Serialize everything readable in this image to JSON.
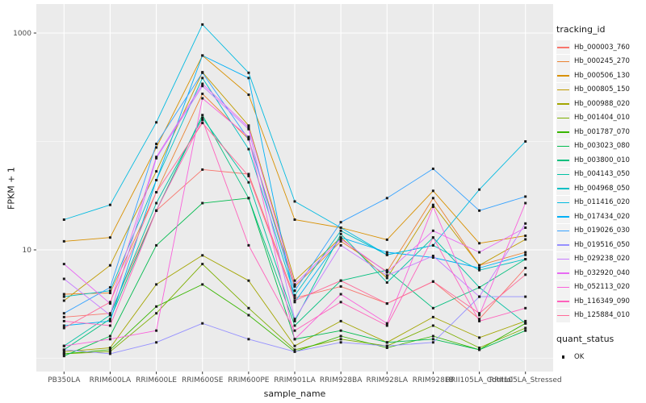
{
  "chart": {
    "xlabel": "sample_name",
    "ylabel": "FPKM + 1",
    "legend_title": "tracking_id",
    "legend2_title": "quant_status",
    "legend2_items": [
      {
        "label": "OK",
        "marker": "point-icon"
      }
    ]
  },
  "chart_data": {
    "type": "line",
    "x_axis_label": "sample_name",
    "y_axis_label": "FPKM + 1",
    "y_scale": "log10",
    "y_ticks": [
      10,
      1000
    ],
    "y_minor_gridlines": [
      1,
      100
    ],
    "ylim": [
      0.85,
      1500
    ],
    "grid": true,
    "legend_position": "right",
    "panel_bg": "#EBEBEB",
    "grid_color": "#FFFFFF",
    "point_color": "#1a1a1a",
    "tick_label_color": "#4D4D4D",
    "categories": [
      "PB350LA",
      "RRIM600LA",
      "RRIM600LE",
      "RRIM600SE",
      "RRIM600PE",
      "RRIM901LA",
      "RRIM928BA",
      "RRIM928LA",
      "RRIM928LB",
      "RRII105LA_Control",
      "RRII105LA_Stressed"
    ],
    "series": [
      {
        "name": "Hb_000003_760",
        "color": "#F8766D",
        "values": [
          2.4,
          2.6,
          23,
          55,
          50,
          3.6,
          4.6,
          3.2,
          5.1,
          2.3,
          6.8
        ]
      },
      {
        "name": "Hb_000245_270",
        "color": "#EA8331",
        "values": [
          3.9,
          4.0,
          34,
          275,
          105,
          4.6,
          12,
          6.3,
          30,
          7.2,
          9.5
        ]
      },
      {
        "name": "Hb_000506_130",
        "color": "#D89000",
        "values": [
          12,
          13,
          88,
          620,
          270,
          19,
          16,
          12.4,
          35,
          11.5,
          13.5
        ]
      },
      {
        "name": "Hb_000805_150",
        "color": "#C09B00",
        "values": [
          3.4,
          7.2,
          53,
          435,
          140,
          5.2,
          13,
          5.5,
          26,
          7.2,
          12.5
        ]
      },
      {
        "name": "Hb_000988_020",
        "color": "#A3A500",
        "values": [
          1.15,
          1.25,
          4.8,
          8.9,
          5.2,
          1.3,
          2.2,
          1.4,
          2.4,
          1.55,
          2.2
        ]
      },
      {
        "name": "Hb_001404_010",
        "color": "#7CAE00",
        "values": [
          1.1,
          1.15,
          2.6,
          7.4,
          2.9,
          1.2,
          1.5,
          1.3,
          2.0,
          1.25,
          1.9
        ]
      },
      {
        "name": "Hb_001787_070",
        "color": "#39B600",
        "values": [
          1.1,
          1.2,
          3.0,
          4.8,
          2.5,
          1.15,
          1.6,
          1.25,
          1.6,
          1.2,
          2.1
        ]
      },
      {
        "name": "Hb_003023_080",
        "color": "#00BB4E",
        "values": [
          1.05,
          1.6,
          11,
          27,
          30,
          1.5,
          1.8,
          1.4,
          1.5,
          1.2,
          1.8
        ]
      },
      {
        "name": "Hb_003800_010",
        "color": "#00BF7D",
        "values": [
          1.2,
          2.3,
          23,
          175,
          30,
          2.0,
          5.2,
          6.5,
          2.9,
          4.5,
          8.2
        ]
      },
      {
        "name": "Hb_004143_050",
        "color": "#00C1A3",
        "values": [
          1.3,
          2.5,
          27,
          165,
          42,
          2.2,
          14,
          5.0,
          13,
          4.5,
          2.1
        ]
      },
      {
        "name": "Hb_004968_050",
        "color": "#00BFC4",
        "values": [
          3.7,
          4.2,
          44,
          385,
          85,
          3.8,
          15,
          9.0,
          11,
          6.5,
          8.2
        ]
      },
      {
        "name": "Hb_011416_020",
        "color": "#00BAE0",
        "values": [
          19,
          26,
          150,
          1200,
          430,
          28,
          16,
          9.0,
          11,
          36,
          100
        ]
      },
      {
        "name": "Hb_017434_020",
        "color": "#00B0F6",
        "values": [
          2.0,
          2.2,
          44,
          620,
          385,
          3.3,
          13,
          9.5,
          8.5,
          6.8,
          9.0
        ]
      },
      {
        "name": "Hb_019026_030",
        "color": "#35A2FF",
        "values": [
          2.6,
          4.5,
          95,
          430,
          105,
          4.2,
          18,
          30,
          56,
          23,
          31
        ]
      },
      {
        "name": "Hb_019516_050",
        "color": "#9590FF",
        "values": [
          1.2,
          1.1,
          1.4,
          2.1,
          1.5,
          1.15,
          1.4,
          1.3,
          1.4,
          3.7,
          3.7
        ]
      },
      {
        "name": "Hb_029238_020",
        "color": "#C77CFF",
        "values": [
          5.4,
          2.5,
          70,
          325,
          130,
          2.3,
          11,
          5.8,
          8.8,
          3.7,
          17.5
        ]
      },
      {
        "name": "Hb_032920_040",
        "color": "#E76BF3",
        "values": [
          7.4,
          3.2,
          72,
          340,
          135,
          4.8,
          12.6,
          6.2,
          15,
          9.5,
          16
        ]
      },
      {
        "name": "Hb_052113_020",
        "color": "#FA62DB",
        "values": [
          1.3,
          1.5,
          1.8,
          250,
          110,
          1.5,
          3.9,
          2.1,
          25,
          2.5,
          27
        ]
      },
      {
        "name": "Hb_116349_090",
        "color": "#FF62BC",
        "values": [
          2.2,
          2.0,
          23,
          158,
          11,
          1.8,
          3.3,
          2.0,
          13,
          2.2,
          2.9
        ]
      },
      {
        "name": "Hb_125884_010",
        "color": "#FF6A98",
        "values": [
          1.9,
          3.3,
          34,
          148,
          48,
          3.4,
          5.2,
          3.2,
          5.1,
          2.6,
          5.9
        ]
      }
    ],
    "quant_status": {
      "title": "quant_status",
      "items": [
        "OK"
      ]
    }
  }
}
